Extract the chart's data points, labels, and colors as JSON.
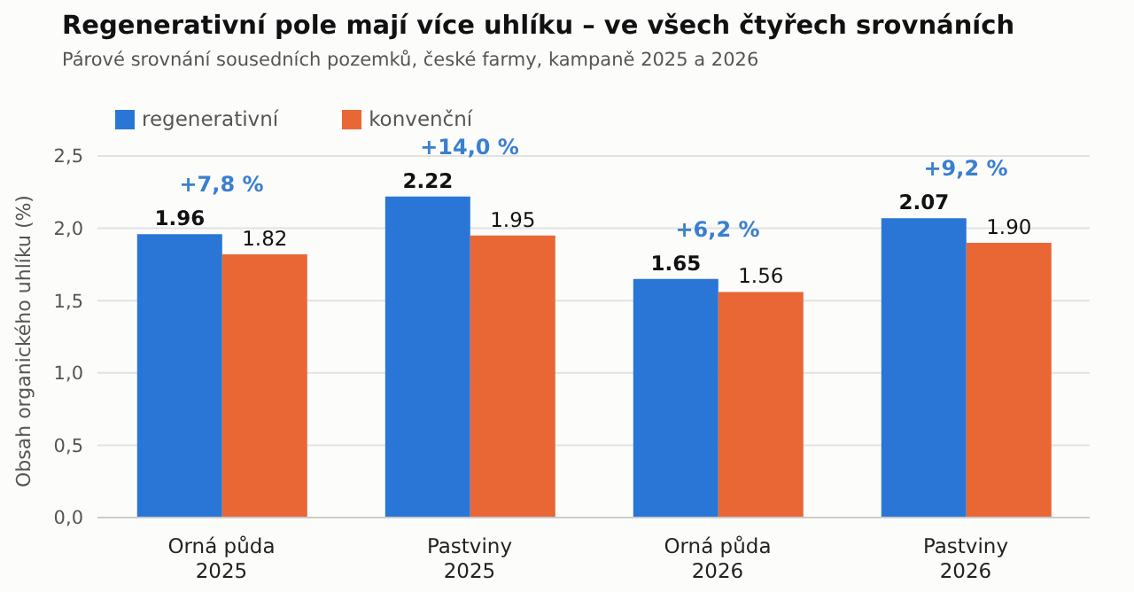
{
  "chart_data": {
    "type": "bar",
    "title": "Regenerativní pole mají více uhlíku – ve všech čtyřech srovnáních",
    "subtitle": "Párové srovnání sousedních pozemků, české farmy, kampaně 2025 a 2026",
    "ylabel": "Obsah organického uhlíku (%)",
    "categories": [
      "Orná půda\n2025",
      "Pastviny\n2025",
      "Orná půda\n2026",
      "Pastviny\n2026"
    ],
    "series": [
      {
        "name": "regenerativní",
        "color": "#2976d6",
        "values": [
          1.96,
          2.22,
          1.65,
          2.07
        ],
        "value_labels": [
          "1.96",
          "2.22",
          "1.65",
          "2.07"
        ]
      },
      {
        "name": "konvenční",
        "color": "#e96735",
        "values": [
          1.82,
          1.95,
          1.56,
          1.9
        ],
        "value_labels": [
          "1.82",
          "1.95",
          "1.56",
          "1.90"
        ]
      }
    ],
    "ylim": [
      0,
      2.5
    ],
    "yticks": [
      {
        "value": 0,
        "label": "0,0"
      },
      {
        "value": 0.5,
        "label": "0,5"
      },
      {
        "value": 1,
        "label": "1,0"
      },
      {
        "value": 1.5,
        "label": "1,5"
      },
      {
        "value": 2,
        "label": "2,0"
      },
      {
        "value": 2.5,
        "label": "2,5"
      }
    ],
    "annotations": [
      "+7,8 %",
      "+14,0 %",
      "+6,2 %",
      "+9,2 %"
    ],
    "grid": "y",
    "legend": "top left"
  }
}
